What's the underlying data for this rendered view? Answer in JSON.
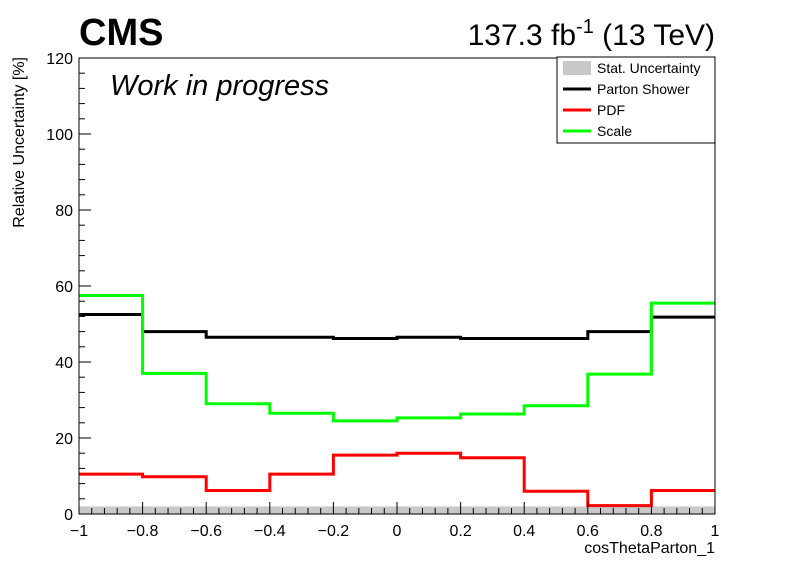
{
  "header": {
    "experiment": "CMS",
    "lumi_value": "137.3 fb",
    "lumi_exponent": "-1",
    "energy": " (13 TeV)",
    "status": "Work in progress"
  },
  "chart_data": {
    "type": "line",
    "title": "",
    "xlabel": "cosThetaParton_1",
    "ylabel": "Relative Uncertainty [%]",
    "xlim": [
      -1,
      1
    ],
    "ylim": [
      0,
      120
    ],
    "grid": false,
    "legend_position": "top-right",
    "x_ticks": [
      -1,
      -0.8,
      -0.6,
      -0.4,
      -0.2,
      0,
      0.2,
      0.4,
      0.6,
      0.8,
      1
    ],
    "x_tick_labels": [
      "−1",
      "−0.8",
      "−0.6",
      "−0.4",
      "−0.2",
      "0",
      "0.2",
      "0.4",
      "0.6",
      "0.8",
      "1"
    ],
    "y_ticks": [
      0,
      20,
      40,
      60,
      80,
      100,
      120
    ],
    "y_tick_labels": [
      "0",
      "20",
      "40",
      "60",
      "80",
      "100",
      "120"
    ],
    "bin_edges": [
      -1,
      -0.8,
      -0.6,
      -0.4,
      -0.2,
      0,
      0.2,
      0.4,
      0.6,
      0.8,
      1
    ],
    "stat_band": {
      "name": "Stat. Uncertainty",
      "color": "#c8c8c8",
      "values": [
        2,
        2,
        2,
        2,
        2,
        2,
        2,
        2,
        2,
        2
      ]
    },
    "series": [
      {
        "name": "Parton Shower",
        "color": "#000000",
        "values": [
          52.5,
          48,
          46.5,
          46.5,
          46.2,
          46.5,
          46.2,
          46.2,
          48,
          51.8
        ]
      },
      {
        "name": "PDF",
        "color": "#ff0000",
        "values": [
          10.5,
          9.8,
          6.2,
          10.5,
          15.5,
          16,
          14.8,
          6,
          2.2,
          6.2
        ]
      },
      {
        "name": "Scale",
        "color": "#00ff00",
        "values": [
          57.5,
          37,
          29,
          26.5,
          24.5,
          25.3,
          26.3,
          28.5,
          36.8,
          55.5
        ]
      }
    ]
  }
}
